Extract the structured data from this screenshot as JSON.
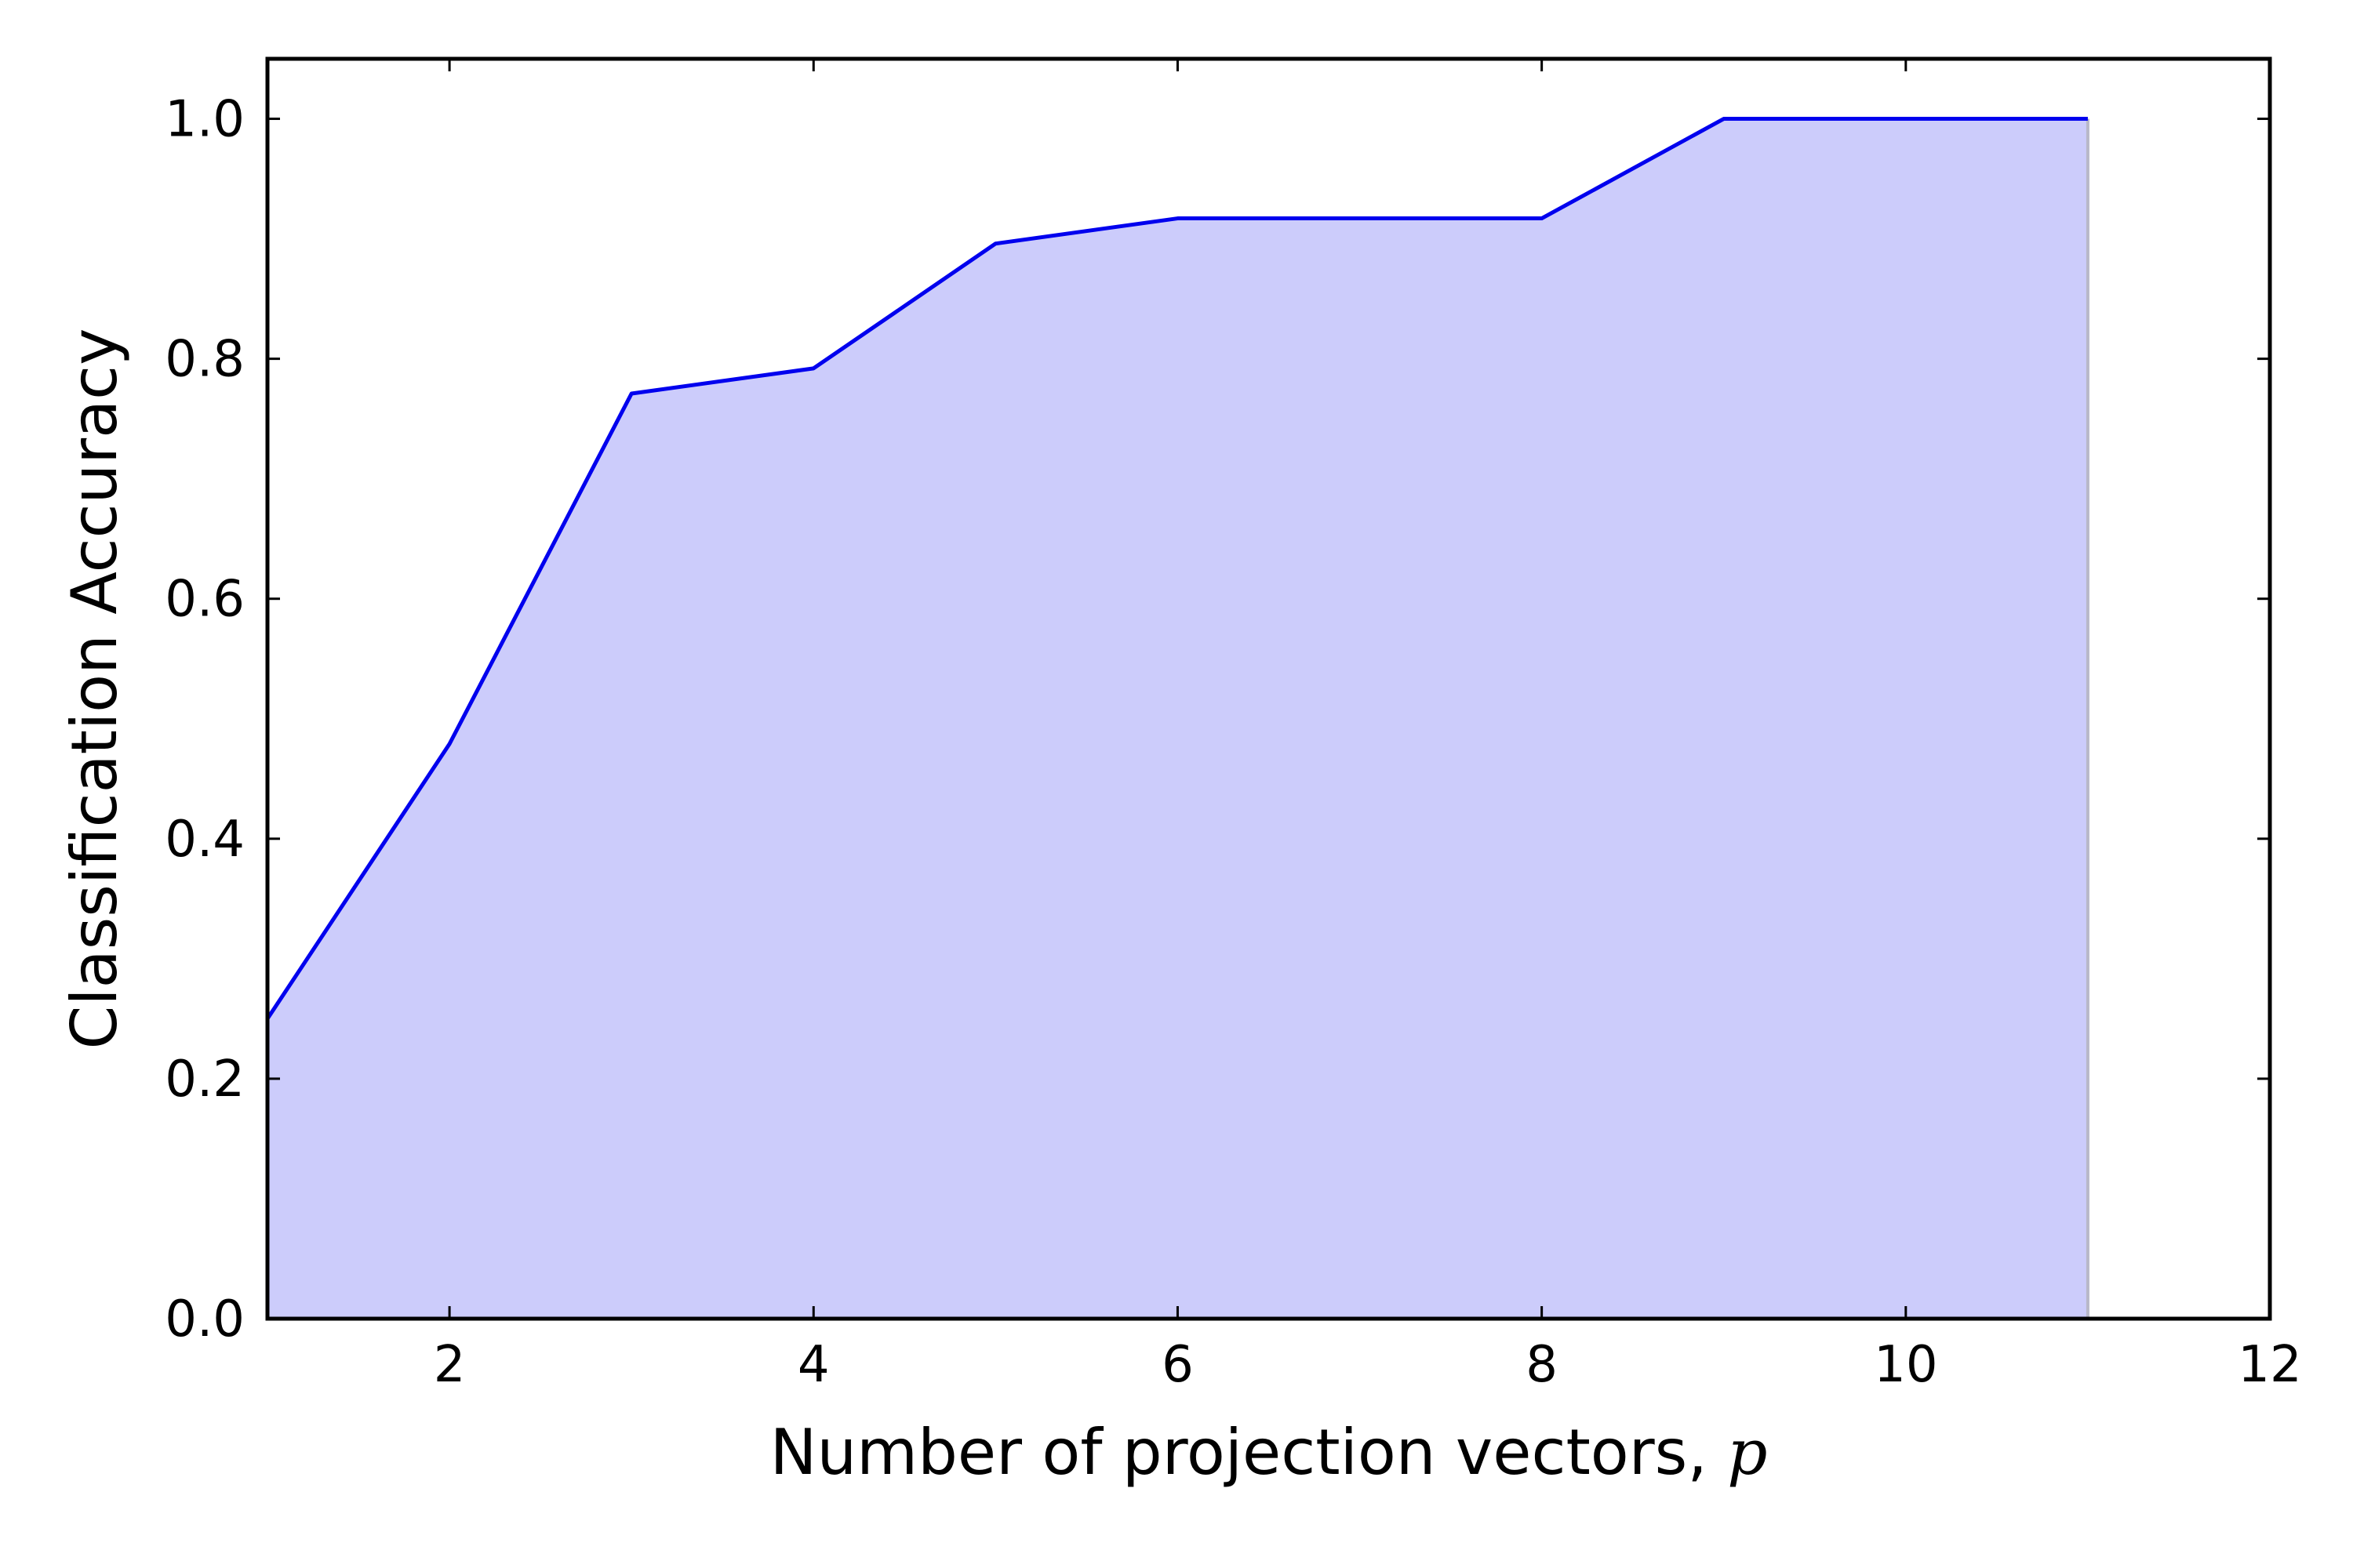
{
  "chart_data": {
    "type": "area",
    "xlabel": "Number of projection vectors, ",
    "xlabel_var": "p",
    "ylabel": "Classification Accuracy",
    "xlim": [
      1,
      12
    ],
    "ylim": [
      0,
      1.05
    ],
    "xticks": [
      2,
      4,
      6,
      8,
      10,
      12
    ],
    "xtick_labels": [
      "2",
      "4",
      "6",
      "8",
      "10",
      "12"
    ],
    "yticks": [
      0.0,
      0.2,
      0.4,
      0.6,
      0.8,
      1.0
    ],
    "ytick_labels": [
      "0.0",
      "0.2",
      "0.4",
      "0.6",
      "0.8",
      "1.0"
    ],
    "grid": false,
    "series": [
      {
        "x": [
          1,
          2,
          3,
          4,
          5,
          6,
          7,
          8,
          9,
          10,
          11
        ],
        "y": [
          0.25,
          0.479,
          0.771,
          0.792,
          0.896,
          0.917,
          0.917,
          0.917,
          1.0,
          1.0,
          1.0
        ],
        "line_color": "#0000ee",
        "fill_color": "#ccccfb"
      }
    ]
  }
}
